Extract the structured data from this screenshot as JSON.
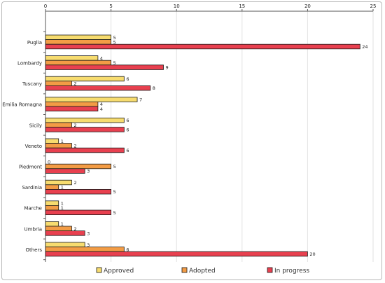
{
  "chart_data": {
    "type": "bar",
    "orientation": "horizontal",
    "categories": [
      "Puglia",
      "Lombardy",
      "Tuscany",
      "Emilia Romagna",
      "Sicily",
      "Veneto",
      "Piedmont",
      "Sardinia",
      "Marche",
      "Umbria",
      "Others"
    ],
    "series": [
      {
        "name": "Approved",
        "color": "#f7dc6f",
        "values": [
          5,
          4,
          6,
          7,
          6,
          1,
          0,
          2,
          1,
          1,
          3
        ]
      },
      {
        "name": "Adopted",
        "color": "#f39c45",
        "values": [
          5,
          5,
          2,
          4,
          2,
          2,
          5,
          1,
          1,
          2,
          6
        ]
      },
      {
        "name": "In progress",
        "color": "#e8404f",
        "values": [
          24,
          9,
          8,
          4,
          6,
          6,
          3,
          5,
          5,
          3,
          20
        ]
      }
    ],
    "xlim": [
      0,
      25
    ],
    "xticks": [
      0,
      5,
      10,
      15,
      20,
      25
    ],
    "x_axis_position": "top",
    "grid": true,
    "legend_position": "bottom",
    "title": "",
    "xlabel": "",
    "ylabel": ""
  }
}
